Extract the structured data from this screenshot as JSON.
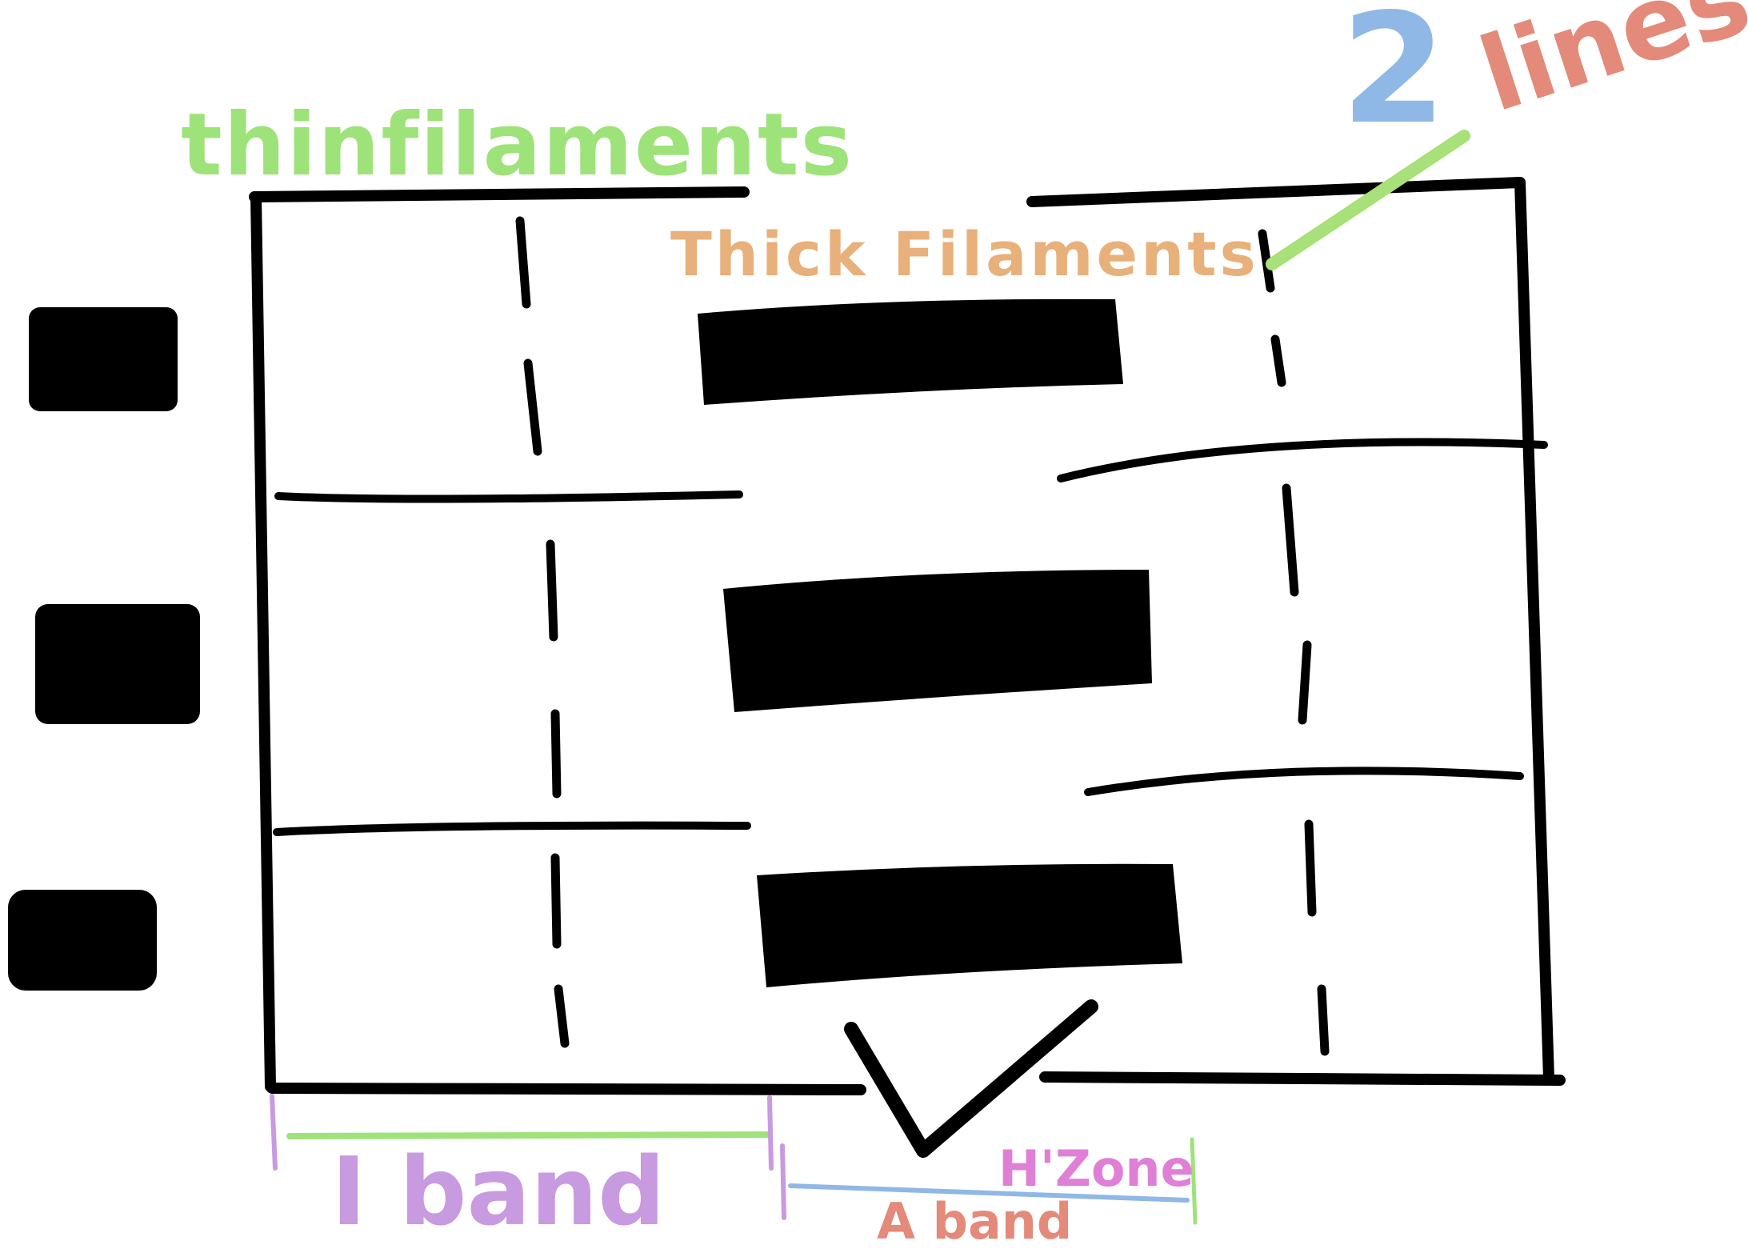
{
  "labels": {
    "thin_filaments": "thinfilaments",
    "thick_filaments": "Thick Filaments",
    "z_lines_number": "2",
    "z_lines_word": "lines",
    "i_band": "I band",
    "h_zone": "H'Zone",
    "a_band": "A band"
  },
  "colors": {
    "ink": "#000000",
    "green": "#9ee27a",
    "blue": "#8fb8e6",
    "pink": "#e07fd6",
    "salmon": "#e48a7a",
    "purple": "#8a7ad8",
    "orange": "#e8b07a",
    "yellow": "#e8e07a"
  }
}
